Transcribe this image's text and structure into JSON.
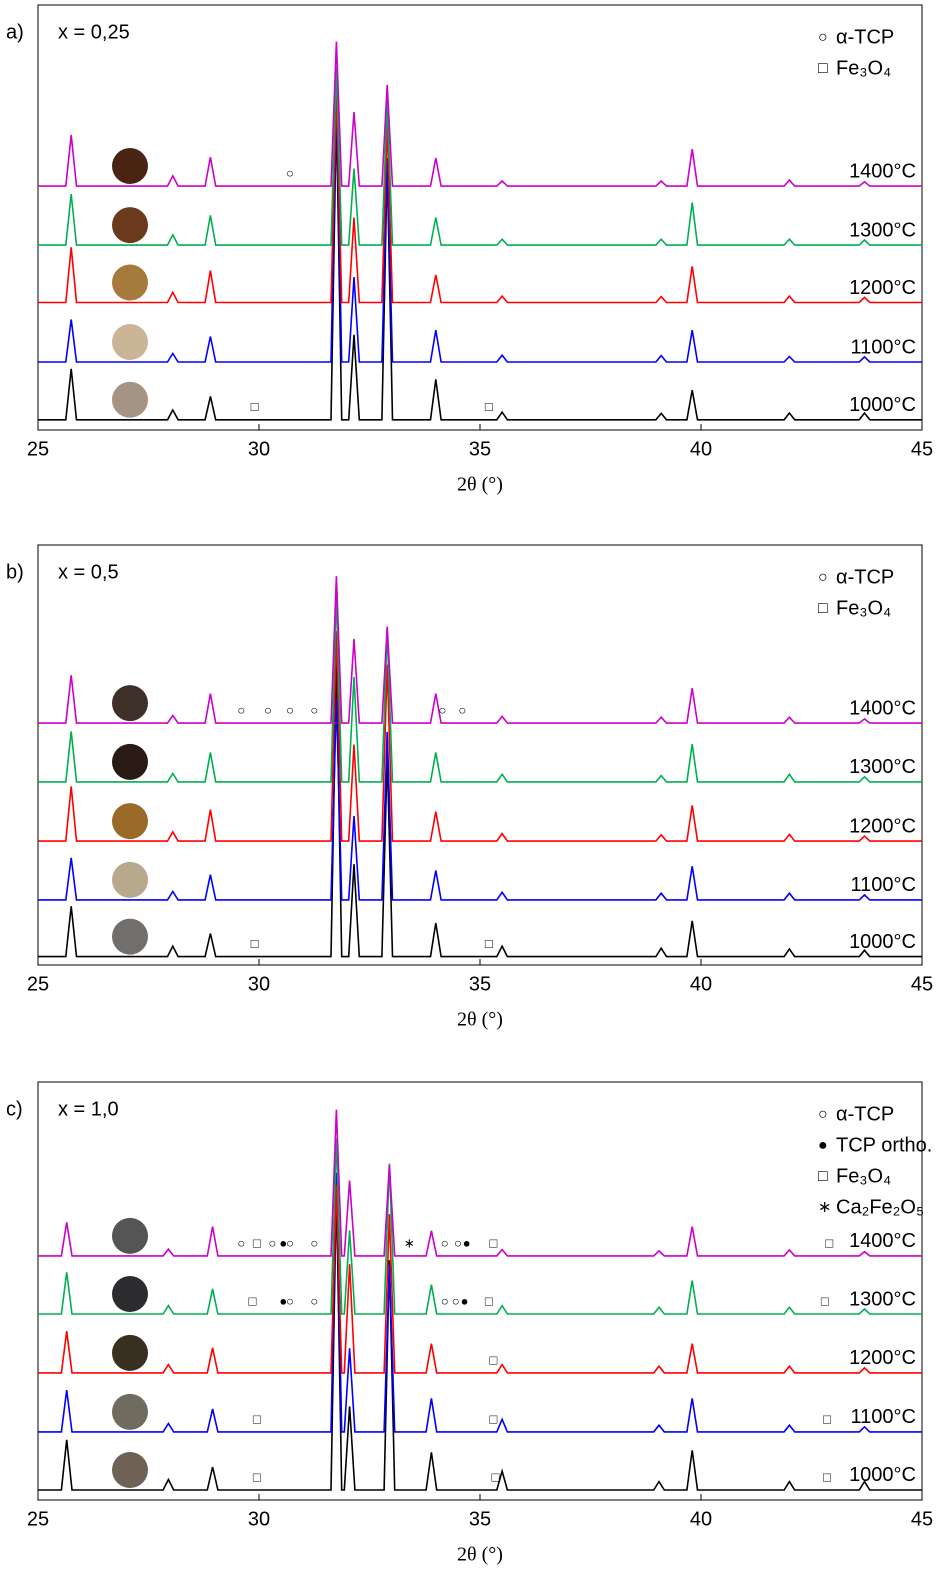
{
  "chart_data": [
    {
      "type": "line",
      "panel_label": "a)",
      "title": "x = 0,25",
      "xlabel": "2θ (°)",
      "xlim": [
        25,
        45
      ],
      "xticks": [
        25,
        30,
        35,
        40,
        45
      ],
      "ylim": [
        0,
        100
      ],
      "phases": [
        {
          "symbol": "○",
          "label": "α-TCP"
        },
        {
          "symbol": "□",
          "label": "Fe₃O₄"
        }
      ],
      "x": [
        25,
        25.63,
        25.75,
        25.87,
        27.93,
        28.05,
        28.17,
        28.78,
        28.9,
        29.02,
        31.63,
        31.75,
        31.87,
        32.03,
        32.15,
        32.27,
        32.78,
        32.9,
        33.02,
        33.88,
        34.0,
        34.12,
        35.38,
        35.5,
        35.62,
        38.98,
        39.1,
        39.22,
        39.68,
        39.8,
        39.92,
        41.88,
        42.0,
        42.12,
        43.58,
        43.7,
        43.82,
        45
      ],
      "series": [
        {
          "name": "1000°C",
          "color": "#000000",
          "values": [
            2.4,
            2.4,
            14.4,
            2.4,
            2.4,
            4.7,
            2.4,
            2.4,
            7.9,
            2.4,
            2.4,
            74.4,
            2.4,
            2.4,
            22.4,
            2.4,
            2.4,
            62.4,
            2.4,
            2.4,
            11.9,
            2.4,
            2.4,
            4.2,
            2.4,
            2.4,
            3.9,
            2.4,
            2.4,
            9.4,
            2.4,
            2.4,
            4,
            2.4,
            2.4,
            4,
            2.4,
            2.4
          ],
          "markers": [
            {
              "symbol": "□",
              "x": 29.9
            },
            {
              "symbol": "□",
              "x": 35.2
            }
          ]
        },
        {
          "name": "1100°C",
          "color": "#0000ff",
          "values": [
            16,
            16,
            26,
            16,
            16,
            18,
            16,
            16,
            22,
            16,
            16,
            78,
            16,
            16,
            36,
            16,
            16,
            64,
            16,
            16,
            23.5,
            16,
            16,
            17.6,
            16,
            16,
            17.5,
            16,
            16,
            23.5,
            16,
            16,
            17.3,
            16,
            16,
            17.2,
            16,
            16
          ]
        },
        {
          "name": "1200°C",
          "color": "#ff0000",
          "values": [
            30,
            30,
            43,
            30,
            30,
            32.4,
            30,
            30,
            37.5,
            30,
            30,
            80,
            30,
            30,
            50,
            30,
            30,
            72,
            30,
            30,
            36.5,
            30,
            30,
            31.5,
            30,
            30,
            31.4,
            30,
            30,
            38.5,
            30,
            30,
            31.5,
            30,
            30,
            31.2,
            30,
            30
          ]
        },
        {
          "name": "1300°C",
          "color": "#00b050",
          "values": [
            43.5,
            43.5,
            55.5,
            43.5,
            43.5,
            45.9,
            43.5,
            43.5,
            50.5,
            43.5,
            43.5,
            85.5,
            43.5,
            43.5,
            61.5,
            43.5,
            43.5,
            77.5,
            43.5,
            43.5,
            50,
            43.5,
            43.5,
            44.9,
            43.5,
            43.5,
            44.9,
            43.5,
            43.5,
            53.5,
            43.5,
            43.5,
            44.9,
            43.5,
            43.5,
            44.7,
            43.5,
            43.5
          ]
        },
        {
          "name": "1400°C",
          "color": "#cc00cc",
          "values": [
            57.4,
            57.4,
            69.4,
            57.4,
            57.4,
            59.8,
            57.4,
            57.4,
            64.2,
            57.4,
            57.4,
            91.4,
            57.4,
            57.4,
            74.8,
            57.4,
            57.4,
            81.2,
            57.4,
            57.4,
            64,
            57.4,
            57.4,
            58.6,
            57.4,
            57.4,
            58.6,
            57.4,
            57.4,
            66.1,
            57.4,
            57.4,
            58.8,
            57.4,
            57.4,
            58.4,
            57.4,
            57.4
          ],
          "markers": [
            {
              "symbol": "○",
              "x": 30.7
            }
          ]
        }
      ]
    },
    {
      "type": "line",
      "panel_label": "b)",
      "title": "x = 0,5",
      "xlabel": "2θ (°)",
      "xlim": [
        25,
        45
      ],
      "xticks": [
        25,
        30,
        35,
        40,
        45
      ],
      "ylim": [
        0,
        100
      ],
      "phases": [
        {
          "symbol": "○",
          "label": "α-TCP"
        },
        {
          "symbol": "□",
          "label": "Fe₃O₄"
        }
      ],
      "x": [
        25,
        25.63,
        25.75,
        25.87,
        27.93,
        28.05,
        28.17,
        28.78,
        28.9,
        29.02,
        31.63,
        31.75,
        31.87,
        32.03,
        32.15,
        32.27,
        32.78,
        32.9,
        33.02,
        33.88,
        34.0,
        34.12,
        35.38,
        35.5,
        35.62,
        38.98,
        39.1,
        39.22,
        39.68,
        39.8,
        39.92,
        41.88,
        42.0,
        42.12,
        43.58,
        43.7,
        43.82,
        45
      ],
      "series": [
        {
          "name": "1000°C",
          "color": "#000000",
          "values": [
            2,
            2,
            14,
            2,
            2,
            4.5,
            2,
            2,
            7.5,
            2,
            2,
            72,
            2,
            2,
            24,
            2,
            2,
            50,
            2,
            2,
            10,
            2,
            2,
            4.5,
            2,
            2,
            4,
            2,
            2,
            10.5,
            2,
            2,
            3.8,
            2,
            2,
            3.5,
            2,
            2
          ],
          "markers": [
            {
              "symbol": "□",
              "x": 29.9
            },
            {
              "symbol": "□",
              "x": 35.2
            }
          ]
        },
        {
          "name": "1100°C",
          "color": "#0000ff",
          "values": [
            15.5,
            15.5,
            25.5,
            15.5,
            15.5,
            17.5,
            15.5,
            15.5,
            21.5,
            15.5,
            15.5,
            63.5,
            15.5,
            15.5,
            35.5,
            15.5,
            15.5,
            55.5,
            15.5,
            15.5,
            22.5,
            15.5,
            15.5,
            17.3,
            15.5,
            15.5,
            17.1,
            15.5,
            15.5,
            23.5,
            15.5,
            15.5,
            17.1,
            15.5,
            15.5,
            16.7,
            15.5,
            15.5
          ]
        },
        {
          "name": "1200°C",
          "color": "#ff0000",
          "values": [
            29.5,
            29.5,
            42.5,
            29.5,
            29.5,
            31.7,
            29.5,
            29.5,
            37,
            29.5,
            29.5,
            79.5,
            29.5,
            29.5,
            52.5,
            29.5,
            29.5,
            71.5,
            29.5,
            29.5,
            36.5,
            29.5,
            29.5,
            31.3,
            29.5,
            29.5,
            31,
            29.5,
            29.5,
            38,
            29.5,
            29.5,
            31.1,
            29.5,
            29.5,
            30.7,
            29.5,
            29.5
          ]
        },
        {
          "name": "1300°C",
          "color": "#00b050",
          "values": [
            43.6,
            43.6,
            55.6,
            43.6,
            43.6,
            45.6,
            43.6,
            43.6,
            50.6,
            43.6,
            43.6,
            88.6,
            43.6,
            43.6,
            68.6,
            43.6,
            43.6,
            79.6,
            43.6,
            43.6,
            50.6,
            43.6,
            43.6,
            45.4,
            43.6,
            43.6,
            45.1,
            43.6,
            43.6,
            52.6,
            43.6,
            43.6,
            45.4,
            43.6,
            43.6,
            44.8,
            43.6,
            43.6
          ]
        },
        {
          "name": "1400°C",
          "color": "#cc00cc",
          "values": [
            57.6,
            57.6,
            69,
            57.6,
            57.6,
            59.4,
            57.6,
            57.6,
            64.6,
            57.6,
            57.6,
            92.6,
            57.6,
            57.6,
            77.6,
            57.6,
            57.6,
            80.6,
            57.6,
            57.6,
            64.6,
            57.6,
            57.6,
            59.2,
            57.6,
            57.6,
            59,
            57.6,
            57.6,
            65.9,
            57.6,
            57.6,
            59,
            57.6,
            57.6,
            58.6,
            57.6,
            57.6
          ],
          "markers": [
            {
              "symbol": "○",
              "x": 29.6
            },
            {
              "symbol": "○",
              "x": 30.2
            },
            {
              "symbol": "○",
              "x": 30.7
            },
            {
              "symbol": "○",
              "x": 31.25
            },
            {
              "symbol": "○",
              "x": 34.15
            },
            {
              "symbol": "○",
              "x": 34.6
            }
          ]
        }
      ]
    },
    {
      "type": "line",
      "panel_label": "c)",
      "title": "x = 1,0",
      "xlabel": "2θ (°)",
      "xlim": [
        25,
        45
      ],
      "xticks": [
        25,
        30,
        35,
        40,
        45
      ],
      "ylim": [
        0,
        100
      ],
      "phases": [
        {
          "symbol": "○",
          "label": "α-TCP"
        },
        {
          "symbol": "●",
          "label": "TCP ortho."
        },
        {
          "symbol": "□",
          "label": "Fe₃O₄"
        },
        {
          "symbol": "∗",
          "label": "Ca₂Fe₂O₅"
        }
      ],
      "x": [
        25,
        25.53,
        25.65,
        25.77,
        27.83,
        27.95,
        28.07,
        28.83,
        28.95,
        29.07,
        31.63,
        31.75,
        31.87,
        31.93,
        32.05,
        32.17,
        32.83,
        32.95,
        33.07,
        33.78,
        33.9,
        34.02,
        35.38,
        35.5,
        35.62,
        38.93,
        39.05,
        39.17,
        39.68,
        39.8,
        39.92,
        41.88,
        42.0,
        42.12,
        43.58,
        43.7,
        43.82,
        45
      ],
      "series": [
        {
          "name": "1000°C",
          "color": "#000000",
          "values": [
            2.4,
            2.4,
            14.4,
            2.4,
            2.4,
            4.9,
            2.4,
            2.4,
            7.9,
            2.4,
            2.4,
            74.4,
            2.4,
            2.4,
            22.4,
            2.4,
            2.4,
            57.4,
            2.4,
            2.4,
            11.4,
            2.4,
            2.4,
            6.9,
            2.4,
            2.4,
            4.4,
            2.4,
            2.4,
            11.9,
            2.4,
            2.4,
            4.4,
            2.4,
            2.4,
            4.4,
            2.4,
            2.4
          ],
          "markers": [
            {
              "symbol": "□",
              "x": 29.95
            },
            {
              "symbol": "□",
              "x": 35.35
            },
            {
              "symbol": "□",
              "x": 42.85
            }
          ]
        },
        {
          "name": "1100°C",
          "color": "#0000ff",
          "values": [
            16.3,
            16.3,
            26.3,
            16.3,
            16.3,
            18.3,
            16.3,
            16.3,
            21.8,
            16.3,
            16.3,
            78.3,
            16.3,
            16.3,
            36.3,
            16.3,
            16.3,
            56.3,
            16.3,
            16.3,
            24.3,
            16.3,
            16.3,
            19.3,
            16.3,
            16.3,
            17.9,
            16.3,
            16.3,
            24.3,
            16.3,
            16.3,
            17.9,
            16.3,
            16.3,
            17.5,
            16.3,
            16.3
          ],
          "markers": [
            {
              "symbol": "□",
              "x": 29.95
            },
            {
              "symbol": "□",
              "x": 35.3
            },
            {
              "symbol": "□",
              "x": 42.85
            }
          ]
        },
        {
          "name": "1200°C",
          "color": "#ff0000",
          "values": [
            30.4,
            30.4,
            40.4,
            30.4,
            30.4,
            32.4,
            30.4,
            30.4,
            36.4,
            30.4,
            30.4,
            75.4,
            30.4,
            30.4,
            56.4,
            30.4,
            30.4,
            68.4,
            30.4,
            30.4,
            37.4,
            30.4,
            30.4,
            32.4,
            30.4,
            30.4,
            32,
            30.4,
            30.4,
            37.4,
            30.4,
            30.4,
            32,
            30.4,
            30.4,
            31.6,
            30.4,
            30.4
          ],
          "markers": [
            {
              "symbol": "□",
              "x": 35.3
            }
          ]
        },
        {
          "name": "1300°C",
          "color": "#00b050",
          "values": [
            44.5,
            44.5,
            54.5,
            44.5,
            44.5,
            46.5,
            44.5,
            44.5,
            50.5,
            44.5,
            44.5,
            86.5,
            44.5,
            44.5,
            64.5,
            44.5,
            44.5,
            80.5,
            44.5,
            44.5,
            51.5,
            44.5,
            44.5,
            46.5,
            44.5,
            44.5,
            46.1,
            44.5,
            44.5,
            52.5,
            44.5,
            44.5,
            46.1,
            44.5,
            44.5,
            45.7,
            44.5,
            44.5
          ],
          "markers": [
            {
              "symbol": "□",
              "x": 29.85
            },
            {
              "symbol": "●",
              "x": 30.55
            },
            {
              "symbol": "○",
              "x": 30.7
            },
            {
              "symbol": "○",
              "x": 31.25
            },
            {
              "symbol": "○",
              "x": 34.2
            },
            {
              "symbol": "○",
              "x": 34.45
            },
            {
              "symbol": "●",
              "x": 34.65
            },
            {
              "symbol": "□",
              "x": 35.2
            },
            {
              "symbol": "□",
              "x": 42.8
            }
          ]
        },
        {
          "name": "1400°C",
          "color": "#cc00cc",
          "values": [
            58.4,
            58.4,
            66.4,
            58.4,
            58.4,
            60,
            58.4,
            58.4,
            65.4,
            58.4,
            58.4,
            93.4,
            58.4,
            58.4,
            76.4,
            58.4,
            58.4,
            80.2,
            58.4,
            58.4,
            64.4,
            58.4,
            58.4,
            59.9,
            58.4,
            58.4,
            59.6,
            58.4,
            58.4,
            65.4,
            58.4,
            58.4,
            59.8,
            58.4,
            58.4,
            59.4,
            58.4,
            58.4
          ],
          "markers": [
            {
              "symbol": "○",
              "x": 29.6
            },
            {
              "symbol": "□",
              "x": 29.95
            },
            {
              "symbol": "○",
              "x": 30.3
            },
            {
              "symbol": "●",
              "x": 30.55
            },
            {
              "symbol": "○",
              "x": 30.7
            },
            {
              "symbol": "○",
              "x": 31.25
            },
            {
              "symbol": "∗",
              "x": 33.4
            },
            {
              "symbol": "○",
              "x": 34.2
            },
            {
              "symbol": "○",
              "x": 34.5
            },
            {
              "symbol": "●",
              "x": 34.7
            },
            {
              "symbol": "□",
              "x": 35.3
            },
            {
              "symbol": "□",
              "x": 42.9
            }
          ]
        }
      ]
    }
  ]
}
